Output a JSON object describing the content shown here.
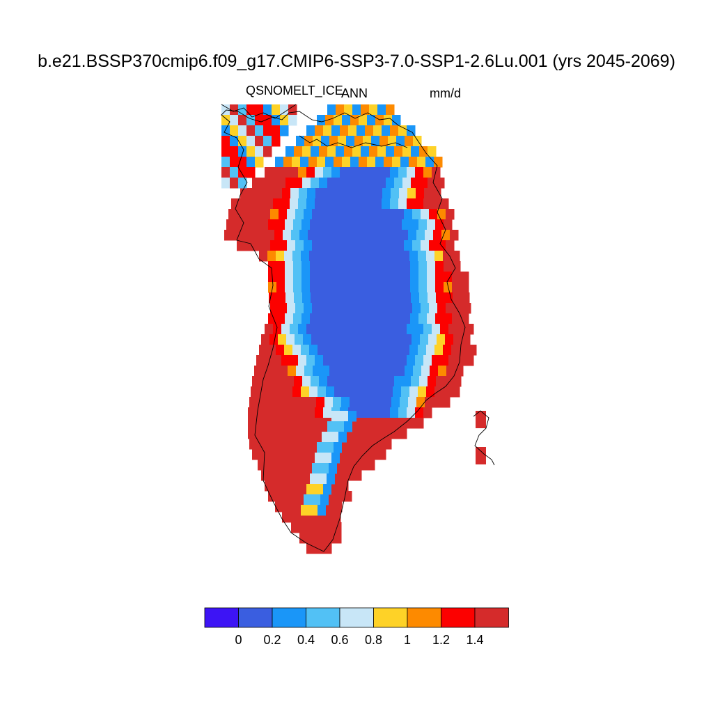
{
  "title": "b.e21.BSSP370cmip6.f09_g17.CMIP6-SSP3-7.0-SSP1-2.6Lu.001 (yrs 2045-2069)",
  "variable": "QSNOMELT_ICE",
  "season": "ANN",
  "units": "mm/d",
  "colors": {
    "c0": "#3d14f5",
    "c1": "#3a5ee0",
    "c2": "#1a96f8",
    "c3": "#52c1f5",
    "c4": "#c8e6f7",
    "c5": "#fed227",
    "c6": "#fd8a00",
    "c7": "#fc0100",
    "c8": "#d52b2b"
  },
  "colorbar": {
    "tick_labels": [
      "0",
      "0.2",
      "0.4",
      "0.6",
      "0.8",
      "1",
      "1.2",
      "1.4"
    ]
  }
}
